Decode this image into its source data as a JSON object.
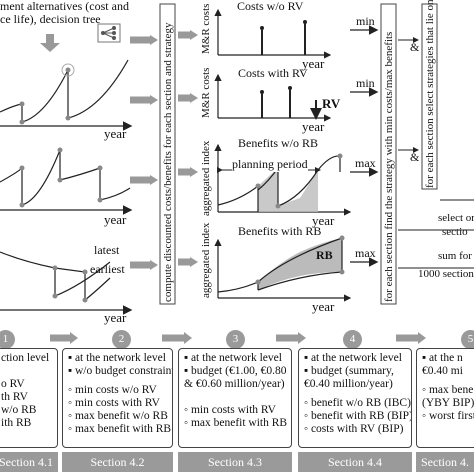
{
  "top_left": {
    "line1": "ment alternatives (cost and",
    "line2": "ce life), decision tree"
  },
  "panels_left": {
    "year1": "year",
    "year2": "year",
    "year3": "year",
    "latest": "latest",
    "earliest": "earliest"
  },
  "vertical_compute": "compute discounted costs/benefits for each section and strategy",
  "charts": {
    "c1": {
      "title": "Costs w/o RV",
      "ylabel": "M&R costs",
      "xlabel": "year"
    },
    "c2": {
      "title": "Costs with RV",
      "ylabel": "M&R costs",
      "xlabel": "year",
      "tag": "RV"
    },
    "c3": {
      "title": "Benefits w/o RB",
      "ylabel": "aggregated index",
      "xlabel": "year",
      "period": "planning period"
    },
    "c4": {
      "title": "Benefits with RB",
      "ylabel": "aggregated index",
      "xlabel": "year",
      "tag": "RB"
    }
  },
  "minmax": {
    "m1": "min",
    "m2": "min",
    "m3": "max",
    "m4": "max"
  },
  "vertical_find": "for each section find the strategy with min costs/max benefits",
  "amp1": "&",
  "amp2": "&",
  "vertical_select": "for each section select strategies that lie on the efficiency frontier + 'do nothing'",
  "right_side": {
    "select1": "select on",
    "select2": "sectio",
    "sum1": "sum for",
    "sum2": "1000 section"
  },
  "steps": [
    "1",
    "2",
    "3",
    "4",
    "5"
  ],
  "boxes": {
    "b1": [
      "ction level",
      "o RV",
      "th RV",
      "w/o RB",
      "ith RB"
    ],
    "b2": [
      "▪ at the network level",
      "▪ w/o budget constraint",
      "",
      "◦ min costs w/o RV",
      "◦ min costs with RV",
      "◦ max benefit w/o RB",
      "◦ max benefit with RB"
    ],
    "b3": [
      "▪ at the network level",
      "▪ budget (€1.00, €0.80",
      "  & €0.60 million/year)",
      "",
      "◦ min costs with RV",
      "◦ max benefit with RB"
    ],
    "b4": [
      "▪ at the network level",
      "▪ budget (summary,",
      "  €0.40 million/year)",
      "",
      "◦ benefit w/o RB (IBC)",
      "◦ benefit with RB (BIP)",
      "◦ costs with RV (BIP)"
    ],
    "b5": [
      "▪ at the n",
      "  €0.40 mi",
      "",
      "◦ max bene",
      "  (YBY BIP)",
      "◦ worst first"
    ]
  },
  "sections": [
    "Section 4.1",
    "Section 4.2",
    "Section 4.3",
    "Section 4.4",
    "Section 4."
  ]
}
